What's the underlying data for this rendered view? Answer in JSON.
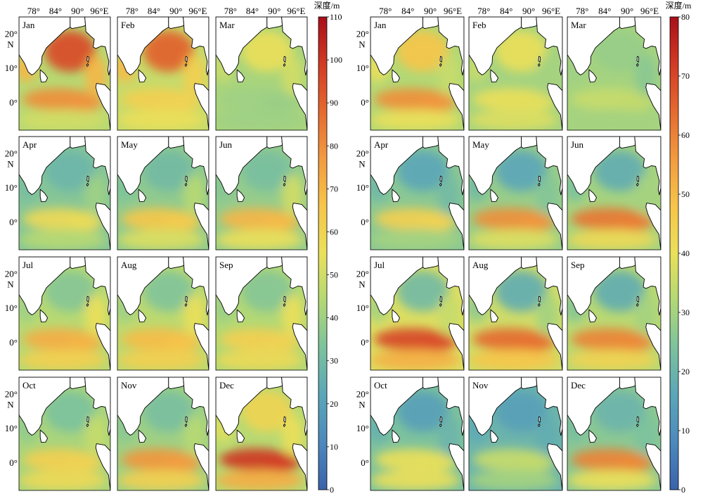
{
  "panels": [
    {
      "name": "left",
      "month_labels": [
        "Jan",
        "Feb",
        "Mar",
        "Apr",
        "May",
        "Jun",
        "Jul",
        "Aug",
        "Sep",
        "Oct",
        "Nov",
        "Dec"
      ],
      "x_ticks": [
        "78°",
        "84°",
        "90°",
        "96°E"
      ],
      "y_ticks": [
        "20°",
        "10°",
        "0°"
      ],
      "y_unit": "N",
      "colorbar": {
        "title": "深度/m",
        "min": 0,
        "max": 110,
        "ticks": [
          "0",
          "10",
          "20",
          "30",
          "40",
          "50",
          "60",
          "70",
          "80",
          "90",
          "100",
          "110"
        ]
      },
      "monthly_patterns": {
        "Jan": {
          "base": 45,
          "bay": 95,
          "east": 70,
          "equator": 80,
          "south": 50
        },
        "Feb": {
          "base": 48,
          "bay": 90,
          "east": 62,
          "equator": 62,
          "south": 55
        },
        "Mar": {
          "base": 42,
          "bay": 55,
          "east": 50,
          "equator": 40,
          "south": 40
        },
        "Apr": {
          "base": 35,
          "bay": 28,
          "east": 40,
          "equator": 58,
          "south": 45
        },
        "May": {
          "base": 37,
          "bay": 30,
          "east": 45,
          "equator": 65,
          "south": 52
        },
        "Jun": {
          "base": 38,
          "bay": 32,
          "east": 50,
          "equator": 70,
          "south": 55
        },
        "Jul": {
          "base": 45,
          "bay": 35,
          "east": 55,
          "equator": 72,
          "south": 62
        },
        "Aug": {
          "base": 46,
          "bay": 34,
          "east": 55,
          "equator": 68,
          "south": 62
        },
        "Sep": {
          "base": 44,
          "bay": 35,
          "east": 55,
          "equator": 62,
          "south": 58
        },
        "Oct": {
          "base": 42,
          "bay": 33,
          "east": 48,
          "equator": 62,
          "south": 58
        },
        "Nov": {
          "base": 40,
          "bay": 32,
          "east": 45,
          "equator": 78,
          "south": 62
        },
        "Dec": {
          "base": 45,
          "bay": 60,
          "east": 55,
          "equator": 100,
          "south": 72
        }
      }
    },
    {
      "name": "right",
      "month_labels": [
        "Jan",
        "Feb",
        "Mar",
        "Apr",
        "May",
        "Jun",
        "Jul",
        "Aug",
        "Sep",
        "Oct",
        "Nov",
        "Dec"
      ],
      "x_ticks": [
        "78°",
        "84°",
        "90°",
        "96°E"
      ],
      "y_ticks": [
        "20°",
        "10°",
        "0°"
      ],
      "y_unit": "N",
      "colorbar": {
        "title": "深度/m",
        "min": 0,
        "max": 80,
        "ticks": [
          "0",
          "10",
          "20",
          "30",
          "40",
          "50",
          "60",
          "70",
          "80"
        ]
      },
      "monthly_patterns": {
        "Jan": {
          "base": 32,
          "bay": 48,
          "east": 35,
          "equator": 58,
          "south": 40
        },
        "Feb": {
          "base": 30,
          "bay": 40,
          "east": 30,
          "equator": 40,
          "south": 38
        },
        "Mar": {
          "base": 30,
          "bay": 28,
          "east": 26,
          "equator": 35,
          "south": 30
        },
        "Apr": {
          "base": 26,
          "bay": 16,
          "east": 22,
          "equator": 45,
          "south": 30
        },
        "May": {
          "base": 28,
          "bay": 16,
          "east": 25,
          "equator": 58,
          "south": 38
        },
        "Jun": {
          "base": 30,
          "bay": 18,
          "east": 30,
          "equator": 62,
          "south": 42
        },
        "Jul": {
          "base": 38,
          "bay": 22,
          "east": 35,
          "equator": 70,
          "south": 52
        },
        "Aug": {
          "base": 36,
          "bay": 18,
          "east": 30,
          "equator": 64,
          "south": 48
        },
        "Sep": {
          "base": 33,
          "bay": 18,
          "east": 30,
          "equator": 60,
          "south": 44
        },
        "Oct": {
          "base": 24,
          "bay": 14,
          "east": 20,
          "equator": 40,
          "south": 40
        },
        "Nov": {
          "base": 20,
          "bay": 14,
          "east": 18,
          "equator": 35,
          "south": 30
        },
        "Dec": {
          "base": 26,
          "bay": 20,
          "east": 24,
          "equator": 60,
          "south": 40
        }
      }
    }
  ],
  "colors": {
    "ramp": [
      "#3a62aa",
      "#4d89bd",
      "#5ba6b8",
      "#7cc29d",
      "#b2d875",
      "#eae05a",
      "#f6c54a",
      "#f29b3f",
      "#e56a30",
      "#d23a25",
      "#a80f19"
    ],
    "land": "#ffffff",
    "coast": "#000000"
  }
}
